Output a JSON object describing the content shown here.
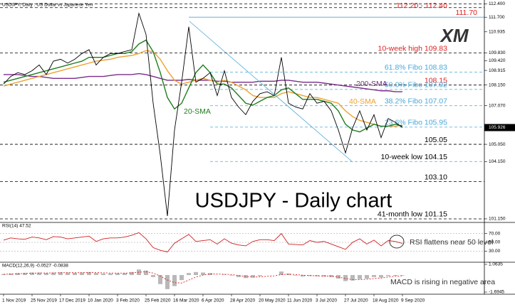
{
  "chart_data": [
    {
      "type": "line",
      "subtitle": "USDJPY, Daily : US Dollar vs Japanese Yen",
      "title": "USDJPY - Daily chart",
      "logo": "XM",
      "categories": [
        "1 Nov 2019",
        null,
        null,
        null,
        "25 Nov 2019",
        null,
        null,
        null,
        "17 Dec 2019",
        null,
        null,
        null,
        "10 Jan 2020",
        null,
        null,
        null,
        "3 Feb 2020",
        null,
        null,
        null,
        "25 Feb 2020",
        null,
        null,
        null,
        "16 Mar 2020",
        null,
        null,
        null,
        "6 Apr 2020",
        null,
        null,
        null,
        "28 Apr 2020",
        null,
        null,
        null,
        "20 May 2020",
        null,
        null,
        null,
        "11 Jun 2020",
        null,
        null,
        null,
        "3 Jul 2020",
        null,
        null,
        null,
        "27 Jul 2020",
        null,
        null,
        null,
        "18 Aug 2020",
        null,
        null,
        null,
        "9 Sep 2020"
      ],
      "series": [
        {
          "color": "#000000",
          "values": [
            108.2,
            108.6,
            108.8,
            108.7,
            108.9,
            109.2,
            108.7,
            109.4,
            109.5,
            109.3,
            109.5,
            109.8,
            110.0,
            109.2,
            109.6,
            109.8,
            109.8,
            109.9,
            110.0,
            111.9,
            110.8,
            107.2,
            104.5,
            101.3,
            105.8,
            108.3,
            111.2,
            108.3,
            108.5,
            108.8,
            107.6,
            108.9,
            107.5,
            107.0,
            106.6,
            107.3,
            107.7,
            107.8,
            107.6,
            109.6,
            107.2,
            107.0,
            106.9,
            107.7,
            107.2,
            107.3,
            106.8,
            105.8,
            104.6,
            105.9,
            106.8,
            105.8,
            106.6,
            105.4,
            106.4,
            106.2,
            105.926
          ]
        },
        {
          "name": "20-SMA",
          "color": "#1e7d1e",
          "values": [
            108.3,
            108.4,
            108.5,
            108.6,
            108.7,
            108.8,
            108.9,
            109.0,
            109.1,
            109.2,
            109.3,
            109.4,
            109.6,
            109.6,
            109.6,
            109.7,
            109.8,
            109.8,
            109.9,
            110.3,
            110.5,
            109.9,
            108.8,
            107.5,
            106.9,
            107.2,
            108.0,
            108.8,
            109.2,
            108.8,
            108.2,
            108.2,
            108.0,
            107.6,
            107.2,
            107.1,
            107.3,
            107.5,
            107.6,
            107.9,
            108.0,
            107.7,
            107.4,
            107.4,
            107.4,
            107.3,
            107.2,
            106.8,
            106.1,
            105.8,
            105.7,
            105.9,
            106.1,
            106.0,
            106.0,
            106.1,
            106.0
          ]
        },
        {
          "name": "40-SMA",
          "color": "#f0a030",
          "values": [
            108.1,
            108.2,
            108.3,
            108.4,
            108.5,
            108.6,
            108.7,
            108.8,
            108.9,
            109.0,
            109.1,
            109.2,
            109.3,
            109.4,
            109.45,
            109.5,
            109.6,
            109.65,
            109.7,
            109.8,
            109.95,
            109.9,
            109.5,
            108.9,
            108.4,
            108.2,
            108.3,
            108.4,
            108.5,
            108.4,
            108.3,
            108.4,
            108.3,
            108.1,
            107.9,
            107.6,
            107.5,
            107.5,
            107.5,
            107.7,
            107.8,
            107.7,
            107.6,
            107.5,
            107.5,
            107.4,
            107.3,
            107.2,
            106.8,
            106.5,
            106.3,
            106.2,
            106.1,
            106.0,
            106.0,
            106.0,
            106.05
          ]
        },
        {
          "name": "200-SMA",
          "color": "#7b2b8b",
          "values": [
            108.7,
            108.7,
            108.7,
            108.65,
            108.6,
            108.6,
            108.55,
            108.5,
            108.5,
            108.5,
            108.5,
            108.55,
            108.6,
            108.6,
            108.6,
            108.65,
            108.7,
            108.7,
            108.7,
            108.75,
            108.7,
            108.6,
            108.5,
            108.4,
            108.4,
            108.4,
            108.45,
            108.4,
            108.4,
            108.4,
            108.35,
            108.35,
            108.3,
            108.3,
            108.3,
            108.3,
            108.35,
            108.35,
            108.35,
            108.4,
            108.4,
            108.35,
            108.3,
            108.3,
            108.3,
            108.25,
            108.2,
            108.15,
            108.1,
            108.05,
            108.0,
            107.95,
            107.9,
            107.85,
            107.85,
            107.8,
            107.8
          ]
        }
      ],
      "ylim": [
        101.0,
        112.6
      ],
      "yticks": [
        {
          "value": 112.4,
          "label": "112.400"
        },
        {
          "value": 111.7,
          "label": "111.700"
        },
        {
          "value": 110.935,
          "label": "110.935"
        },
        {
          "value": 109.83,
          "label": "109.830"
        },
        {
          "value": 109.42,
          "label": "109.420"
        },
        {
          "value": 108.915,
          "label": "108.915"
        },
        {
          "value": 108.15,
          "label": "108.150"
        },
        {
          "value": 107.07,
          "label": "107.070"
        },
        {
          "value": 105.05,
          "label": "105.050"
        },
        {
          "value": 104.15,
          "label": "104.150"
        },
        {
          "value": 101.15,
          "label": "101.150"
        }
      ],
      "last_price": {
        "value": 105.926,
        "label": "105.926"
      },
      "levels": [
        {
          "label": "112.20 - 112.40",
          "values": [
            112.2,
            112.4
          ],
          "color": "#e02020",
          "line_color": "#000000",
          "line": "dashed"
        },
        {
          "label": "111.70",
          "value": 111.7,
          "color": "#e02020",
          "line_color": "#4aa8d8",
          "line": "solid"
        },
        {
          "label": "10-week high 109.83",
          "value": 109.83,
          "color": "#e02020",
          "line_color": "#000000",
          "line": "dashed"
        },
        {
          "label": "61.8% Fibo 108.83",
          "value": 108.83,
          "color": "#4aa8d8",
          "line_color": "#4aa8d8",
          "line": "fib"
        },
        {
          "label": "108.15",
          "value": 108.15,
          "color": "#e02020",
          "line_color": "#000000",
          "line": "dashed"
        },
        {
          "label": "50.0% Fibo 107.92",
          "value": 107.92,
          "color": "#4aa8d8",
          "line_color": "#4aa8d8",
          "line": "fib"
        },
        {
          "label": "38.2% Fibo 107.07",
          "value": 107.07,
          "color": "#4aa8d8",
          "line_color": "#4aa8d8",
          "line": "fib"
        },
        {
          "label": "23.6% Fibo 105.95",
          "value": 105.95,
          "color": "#4aa8d8",
          "line_color": "#4aa8d8",
          "line": "fib"
        },
        {
          "label": "105.05",
          "value": 105.05,
          "color": "#000000",
          "line_color": "#000000",
          "line": "dashed"
        },
        {
          "label": "10-week low 104.15",
          "value": 104.15,
          "color": "#000000",
          "line_color": "#4aa8d8",
          "line": "fib"
        },
        {
          "label": "103.10",
          "value": 103.1,
          "color": "#000000",
          "line_color": "#000000",
          "line": "dashed"
        },
        {
          "label": "41-month low 101.15",
          "value": 101.15,
          "color": "#000000",
          "line_color": "#000000",
          "line": "dashed"
        }
      ]
    },
    {
      "type": "line",
      "title": "RSI(14) 47.52",
      "annotation": "RSI flattens near 50 level",
      "series": [
        {
          "color": "#d02020",
          "values": [
            55,
            60,
            58,
            57,
            62,
            60,
            56,
            63,
            62,
            58,
            60,
            62,
            64,
            52,
            58,
            60,
            60,
            62,
            66,
            72,
            58,
            38,
            32,
            28,
            48,
            58,
            68,
            52,
            54,
            56,
            46,
            58,
            48,
            44,
            42,
            52,
            56,
            56,
            54,
            70,
            46,
            45,
            44,
            54,
            50,
            52,
            46,
            40,
            34,
            50,
            58,
            46,
            55,
            42,
            54,
            52,
            47.52
          ]
        }
      ],
      "ylim": [
        8,
        92
      ],
      "yticks": [
        {
          "value": 70,
          "label": "70.00"
        },
        {
          "value": 50,
          "label": "50.00"
        },
        {
          "value": 30,
          "label": "30.00"
        }
      ]
    },
    {
      "type": "bar",
      "title": "MACD(12,26,9) -0.0527 -0.0838",
      "annotation": "MACD is rising in negative area",
      "series": [
        {
          "type": "bar",
          "color": "#b8b8b8",
          "values": [
            0.1,
            0.15,
            0.2,
            0.22,
            0.25,
            0.25,
            0.2,
            0.25,
            0.28,
            0.25,
            0.22,
            0.25,
            0.3,
            0.2,
            0.15,
            0.15,
            0.18,
            0.2,
            0.3,
            0.55,
            0.45,
            -0.2,
            -0.9,
            -1.4,
            -1.1,
            -0.5,
            0.2,
            0.3,
            0.25,
            0.2,
            0.0,
            0.05,
            -0.05,
            -0.2,
            -0.3,
            -0.25,
            -0.1,
            0.0,
            0.0,
            0.35,
            0.15,
            -0.05,
            -0.15,
            -0.1,
            -0.12,
            -0.15,
            -0.2,
            -0.35,
            -0.6,
            -0.55,
            -0.4,
            -0.35,
            -0.2,
            -0.25,
            -0.1,
            -0.08,
            -0.0527
          ]
        },
        {
          "type": "line",
          "color": "#e02020",
          "values": [
            0.08,
            0.1,
            0.13,
            0.16,
            0.18,
            0.2,
            0.2,
            0.21,
            0.23,
            0.24,
            0.23,
            0.24,
            0.25,
            0.24,
            0.22,
            0.2,
            0.19,
            0.19,
            0.21,
            0.28,
            0.33,
            0.2,
            -0.1,
            -0.5,
            -0.75,
            -0.8,
            -0.5,
            -0.2,
            0.0,
            0.1,
            0.1,
            0.08,
            0.05,
            -0.05,
            -0.15,
            -0.2,
            -0.18,
            -0.12,
            -0.08,
            0.05,
            0.08,
            0.05,
            -0.02,
            -0.05,
            -0.08,
            -0.1,
            -0.12,
            -0.2,
            -0.35,
            -0.45,
            -0.45,
            -0.42,
            -0.35,
            -0.3,
            -0.2,
            -0.12,
            -0.0838
          ]
        }
      ],
      "ylim": [
        -1.6945,
        1.0635
      ],
      "yticks": [
        1.0635,
        -1.6945
      ]
    }
  ]
}
